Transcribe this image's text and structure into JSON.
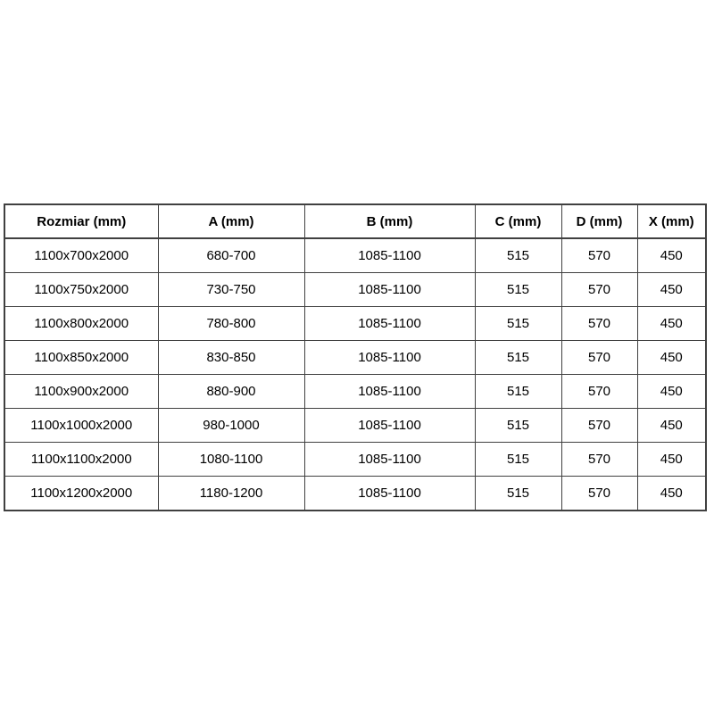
{
  "colors": {
    "background": "#ffffff",
    "border": "#404040",
    "text": "#000000"
  },
  "chart_data": {
    "type": "table",
    "columns": [
      "Rozmiar (mm)",
      "A (mm)",
      "B (mm)",
      "C (mm)",
      "D (mm)",
      "X (mm)"
    ],
    "rows": [
      [
        "1100x700x2000",
        "680-700",
        "1085-1100",
        "515",
        "570",
        "450"
      ],
      [
        "1100x750x2000",
        "730-750",
        "1085-1100",
        "515",
        "570",
        "450"
      ],
      [
        "1100x800x2000",
        "780-800",
        "1085-1100",
        "515",
        "570",
        "450"
      ],
      [
        "1100x850x2000",
        "830-850",
        "1085-1100",
        "515",
        "570",
        "450"
      ],
      [
        "1100x900x2000",
        "880-900",
        "1085-1100",
        "515",
        "570",
        "450"
      ],
      [
        "1100x1000x2000",
        "980-1000",
        "1085-1100",
        "515",
        "570",
        "450"
      ],
      [
        "1100x1100x2000",
        "1080-1100",
        "1085-1100",
        "515",
        "570",
        "450"
      ],
      [
        "1100x1200x2000",
        "1180-1200",
        "1085-1100",
        "515",
        "570",
        "450"
      ]
    ]
  }
}
